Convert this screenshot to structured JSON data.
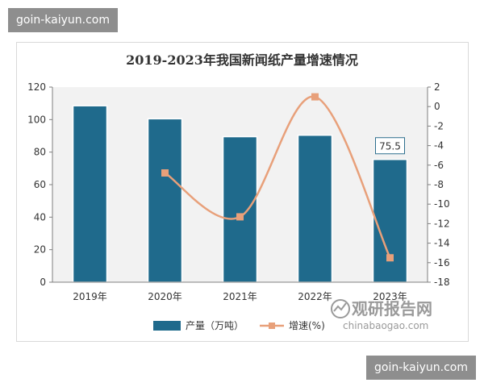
{
  "badges": {
    "top": "goin-kaiyun.com",
    "bottom": "goin-kaiyun.com"
  },
  "watermark": {
    "cn": "观研报告网",
    "en": "chinabaogao.com"
  },
  "colors": {
    "bar": "#1f6a8c",
    "line": "#e8a07a",
    "marker": "#e8a07a",
    "plot_bg": "#f2f2f2"
  },
  "chart_data": {
    "type": "bar+line",
    "title": "2019-2023年我国新闻纸产量增速情况",
    "categories": [
      "2019年",
      "2020年",
      "2021年",
      "2022年",
      "2023年"
    ],
    "series": [
      {
        "name": "产量（万吨）",
        "type": "bar",
        "axis": "left",
        "values": [
          108.5,
          100.5,
          89.5,
          90.4,
          75.5
        ]
      },
      {
        "name": "增速(%)",
        "type": "line",
        "axis": "right",
        "values": [
          null,
          -6.8,
          -11.3,
          1.0,
          -15.5
        ]
      }
    ],
    "left_axis": {
      "min": 0,
      "max": 120,
      "step": 20
    },
    "right_axis": {
      "min": -18,
      "max": 2,
      "step": 2
    },
    "data_labels": [
      {
        "category": "2023年",
        "series": "产量（万吨）",
        "text": "75.5"
      }
    ],
    "legend": "bottom",
    "grid": false
  }
}
